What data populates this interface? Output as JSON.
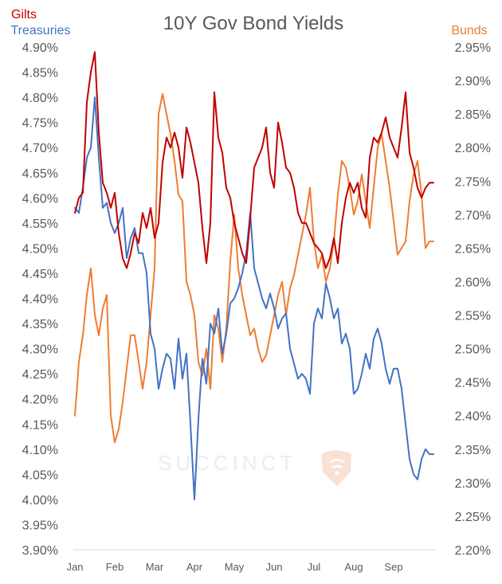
{
  "chart_data": {
    "type": "line",
    "title": "10Y Gov Bond Yields",
    "watermark": "SUCCINCT",
    "left_axis_labels": [
      "Gilts",
      "Treasuries"
    ],
    "right_axis_label": "Bunds",
    "x_categories": [
      "Jan",
      "Feb",
      "Mar",
      "Apr",
      "May",
      "Jun",
      "Jul",
      "Aug",
      "Sep"
    ],
    "y_left": {
      "min": 3.9,
      "max": 4.9,
      "step": 0.05,
      "tick_labels": [
        "4.90%",
        "4.85%",
        "4.80%",
        "4.75%",
        "4.70%",
        "4.65%",
        "4.60%",
        "4.55%",
        "4.50%",
        "4.45%",
        "4.40%",
        "4.35%",
        "4.30%",
        "4.25%",
        "4.20%",
        "4.15%",
        "4.10%",
        "4.05%",
        "4.00%",
        "3.95%",
        "3.90%"
      ]
    },
    "y_right": {
      "min": 2.2,
      "max": 2.95,
      "step": 0.05,
      "tick_labels": [
        "2.95%",
        "2.90%",
        "2.85%",
        "2.80%",
        "2.75%",
        "2.70%",
        "2.65%",
        "2.60%",
        "2.55%",
        "2.50%",
        "2.45%",
        "2.40%",
        "2.35%",
        "2.30%",
        "2.25%",
        "2.20%"
      ]
    },
    "grid": false,
    "colors": {
      "gilts": "#c00000",
      "treasuries": "#4472c4",
      "bunds": "#ed7d31",
      "text": "#595959"
    },
    "series": [
      {
        "name": "Gilts",
        "axis": "left",
        "color": "#c00000",
        "x": [
          0,
          0.1,
          0.2,
          0.3,
          0.4,
          0.5,
          0.6,
          0.7,
          0.8,
          0.9,
          1.0,
          1.1,
          1.2,
          1.3,
          1.4,
          1.5,
          1.6,
          1.7,
          1.8,
          1.9,
          2.0,
          2.1,
          2.2,
          2.3,
          2.4,
          2.5,
          2.6,
          2.7,
          2.8,
          2.9,
          3.0,
          3.1,
          3.2,
          3.3,
          3.4,
          3.5,
          3.6,
          3.7,
          3.8,
          3.9,
          4.0,
          4.1,
          4.2,
          4.3,
          4.4,
          4.5,
          4.6,
          4.7,
          4.8,
          4.9,
          5.0,
          5.1,
          5.2,
          5.3,
          5.4,
          5.5,
          5.6,
          5.7,
          5.8,
          5.9,
          6.0,
          6.1,
          6.2,
          6.3,
          6.4,
          6.5,
          6.6,
          6.7,
          6.8,
          6.9,
          7.0,
          7.1,
          7.2,
          7.3,
          7.4,
          7.5,
          7.6,
          7.7,
          7.8,
          7.9,
          8.0,
          8.1,
          8.2,
          8.3,
          8.4,
          8.5,
          8.6,
          8.7,
          8.8,
          8.9,
          9.0
        ],
        "values": [
          4.57,
          4.6,
          4.61,
          4.79,
          4.85,
          4.89,
          4.73,
          4.63,
          4.61,
          4.58,
          4.61,
          4.53,
          4.48,
          4.46,
          4.49,
          4.53,
          4.51,
          4.57,
          4.54,
          4.58,
          4.52,
          4.55,
          4.67,
          4.72,
          4.7,
          4.73,
          4.7,
          4.64,
          4.74,
          4.71,
          4.67,
          4.63,
          4.54,
          4.47,
          4.55,
          4.81,
          4.72,
          4.69,
          4.62,
          4.6,
          4.55,
          4.52,
          4.49,
          4.47,
          4.56,
          4.66,
          4.68,
          4.7,
          4.74,
          4.65,
          4.62,
          4.75,
          4.71,
          4.66,
          4.65,
          4.62,
          4.57,
          4.55,
          4.55,
          4.53,
          4.51,
          4.5,
          4.49,
          4.46,
          4.48,
          4.52,
          4.47,
          4.55,
          4.6,
          4.63,
          4.61,
          4.63,
          4.58,
          4.56,
          4.68,
          4.72,
          4.71,
          4.73,
          4.76,
          4.72,
          4.7,
          4.68,
          4.74,
          4.81,
          4.69,
          4.66,
          4.62,
          4.6,
          4.62,
          4.63,
          4.63
        ]
      },
      {
        "name": "Treasuries",
        "axis": "left",
        "color": "#4472c4",
        "x": [
          0,
          0.1,
          0.2,
          0.3,
          0.4,
          0.5,
          0.6,
          0.7,
          0.8,
          0.9,
          1.0,
          1.1,
          1.2,
          1.3,
          1.4,
          1.5,
          1.6,
          1.7,
          1.8,
          1.9,
          2.0,
          2.1,
          2.2,
          2.3,
          2.4,
          2.5,
          2.6,
          2.7,
          2.8,
          2.9,
          3.0,
          3.1,
          3.2,
          3.3,
          3.4,
          3.5,
          3.6,
          3.7,
          3.8,
          3.9,
          4.0,
          4.1,
          4.2,
          4.3,
          4.4,
          4.5,
          4.6,
          4.7,
          4.8,
          4.9,
          5.0,
          5.1,
          5.2,
          5.3,
          5.4,
          5.5,
          5.6,
          5.7,
          5.8,
          5.9,
          6.0,
          6.1,
          6.2,
          6.3,
          6.4,
          6.5,
          6.6,
          6.7,
          6.8,
          6.9,
          7.0,
          7.1,
          7.2,
          7.3,
          7.4,
          7.5,
          7.6,
          7.7,
          7.8,
          7.9,
          8.0,
          8.1,
          8.2,
          8.3,
          8.4,
          8.5,
          8.6,
          8.7,
          8.8,
          8.9,
          9.0
        ],
        "values": [
          4.58,
          4.57,
          4.62,
          4.68,
          4.7,
          4.8,
          4.68,
          4.58,
          4.59,
          4.55,
          4.53,
          4.55,
          4.58,
          4.48,
          4.52,
          4.54,
          4.49,
          4.49,
          4.45,
          4.33,
          4.3,
          4.22,
          4.26,
          4.29,
          4.28,
          4.22,
          4.32,
          4.24,
          4.29,
          4.15,
          4.0,
          4.16,
          4.28,
          4.23,
          4.35,
          4.33,
          4.38,
          4.29,
          4.33,
          4.39,
          4.4,
          4.42,
          4.45,
          4.49,
          4.57,
          4.46,
          4.43,
          4.4,
          4.38,
          4.41,
          4.38,
          4.34,
          4.36,
          4.37,
          4.3,
          4.27,
          4.24,
          4.25,
          4.24,
          4.21,
          4.35,
          4.38,
          4.36,
          4.43,
          4.4,
          4.36,
          4.38,
          4.31,
          4.33,
          4.3,
          4.21,
          4.22,
          4.25,
          4.29,
          4.26,
          4.32,
          4.34,
          4.31,
          4.26,
          4.23,
          4.26,
          4.26,
          4.22,
          4.15,
          4.08,
          4.05,
          4.04,
          4.08,
          4.1,
          4.09,
          4.09
        ]
      },
      {
        "name": "Bunds",
        "axis": "right",
        "color": "#ed7d31",
        "x": [
          0,
          0.1,
          0.2,
          0.3,
          0.4,
          0.5,
          0.6,
          0.7,
          0.8,
          0.9,
          1.0,
          1.1,
          1.2,
          1.3,
          1.4,
          1.5,
          1.6,
          1.7,
          1.8,
          1.9,
          2.0,
          2.1,
          2.2,
          2.3,
          2.4,
          2.5,
          2.6,
          2.7,
          2.8,
          2.9,
          3.0,
          3.1,
          3.2,
          3.3,
          3.4,
          3.5,
          3.6,
          3.7,
          3.8,
          3.9,
          4.0,
          4.1,
          4.2,
          4.3,
          4.4,
          4.5,
          4.6,
          4.7,
          4.8,
          4.9,
          5.0,
          5.1,
          5.2,
          5.3,
          5.4,
          5.5,
          5.6,
          5.7,
          5.8,
          5.9,
          6.0,
          6.1,
          6.2,
          6.3,
          6.4,
          6.5,
          6.6,
          6.7,
          6.8,
          6.9,
          7.0,
          7.1,
          7.2,
          7.3,
          7.4,
          7.5,
          7.6,
          7.7,
          7.8,
          7.9,
          8.0,
          8.1,
          8.2,
          8.3,
          8.4,
          8.5,
          8.6,
          8.7,
          8.8,
          8.9,
          9.0
        ],
        "values": [
          2.4,
          2.48,
          2.52,
          2.58,
          2.62,
          2.55,
          2.52,
          2.56,
          2.58,
          2.4,
          2.36,
          2.38,
          2.42,
          2.47,
          2.52,
          2.52,
          2.48,
          2.44,
          2.48,
          2.55,
          2.62,
          2.85,
          2.88,
          2.85,
          2.82,
          2.78,
          2.73,
          2.72,
          2.6,
          2.58,
          2.55,
          2.48,
          2.46,
          2.5,
          2.44,
          2.55,
          2.53,
          2.48,
          2.53,
          2.63,
          2.7,
          2.62,
          2.58,
          2.55,
          2.52,
          2.53,
          2.5,
          2.48,
          2.49,
          2.52,
          2.55,
          2.58,
          2.6,
          2.55,
          2.59,
          2.61,
          2.64,
          2.67,
          2.7,
          2.74,
          2.66,
          2.62,
          2.64,
          2.6,
          2.62,
          2.66,
          2.73,
          2.78,
          2.77,
          2.74,
          2.7,
          2.72,
          2.76,
          2.72,
          2.68,
          2.74,
          2.8,
          2.82,
          2.78,
          2.74,
          2.69,
          2.64,
          2.65,
          2.66,
          2.72,
          2.76,
          2.78,
          2.73,
          2.65,
          2.66,
          2.66
        ]
      }
    ]
  }
}
